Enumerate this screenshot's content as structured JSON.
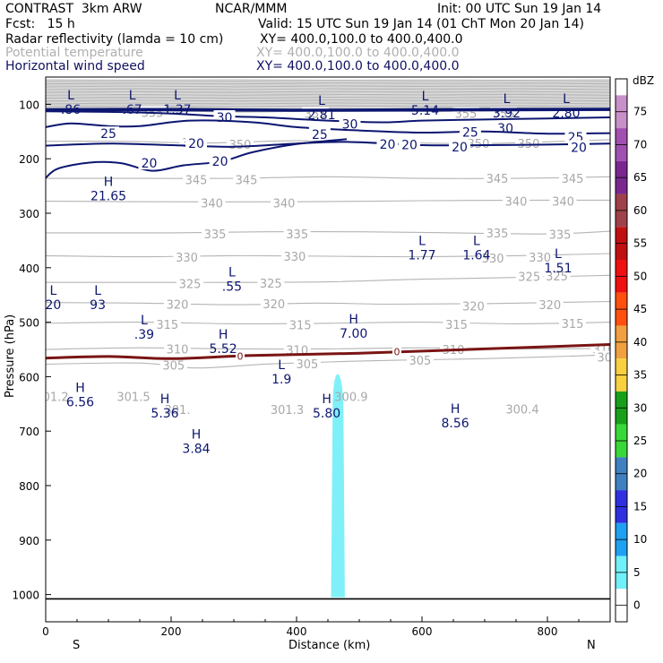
{
  "header": {
    "model": "CONTRAST  3km ARW",
    "org": "NCAR/MMM",
    "init": "Init: 00 UTC Sun 19 Jan 14",
    "fcst": "Fcst:   15 h",
    "valid": "Valid: 15 UTC Sun 19 Jan 14 (01 ChT Mon 20 Jan 14)",
    "field1_name": "Radar reflectivity (lamda = 10 cm)",
    "field1_xy": "XY= 400.0,100.0 to 400.0,400.0",
    "field2_name": "Potential temperature",
    "field2_xy": "XY= 400.0,100.0 to 400.0,400.0",
    "field3_name": "Horizontal wind speed",
    "field3_xy": "XY= 400.0,100.0 to 400.0,400.0"
  },
  "colors": {
    "theta": "#b4b4b4",
    "wind": "#0c1670",
    "freezing": "#7a1414",
    "refl_echo": "#80f0f8"
  },
  "chart_data": {
    "type": "cross-section",
    "title": "Radar reflectivity, potential temperature, horizontal wind speed",
    "xlabel": "Distance (km)",
    "ylabel": "Pressure (hPa)",
    "x_range": [
      0,
      900
    ],
    "p_range": [
      1050,
      50
    ],
    "x_ticks": [
      "0",
      "200",
      "400",
      "600",
      "800"
    ],
    "x_tick_values": [
      0,
      200,
      400,
      600,
      800
    ],
    "x_end_labels": {
      "left": "S",
      "right": "N"
    },
    "y_ticks": [
      "100",
      "200",
      "300",
      "400",
      "500",
      "600",
      "700",
      "800",
      "900",
      "1000"
    ],
    "y_tick_values": [
      100,
      200,
      300,
      400,
      500,
      600,
      700,
      800,
      900,
      1000
    ],
    "colorbar": {
      "unit": "dBZ",
      "levels": [
        "75",
        "70",
        "65",
        "60",
        "55",
        "50",
        "45",
        "40",
        "35",
        "30",
        "25",
        "20",
        "15",
        "10",
        "5",
        "0"
      ],
      "colors": [
        "#c890c8",
        "#a050b0",
        "#7a2890",
        "#a0404a",
        "#c01010",
        "#f01010",
        "#ff5010",
        "#f0a040",
        "#f8d040",
        "#18a018",
        "#38d838",
        "#4080c0",
        "#3030e0",
        "#20a0f0",
        "#70f0f8",
        "#ffffff"
      ]
    },
    "theta_isentropes": [
      {
        "value": "355",
        "points": [
          [
            0,
            112
          ],
          [
            100,
            110
          ],
          [
            200,
            112
          ],
          [
            300,
            114
          ],
          [
            400,
            113
          ],
          [
            500,
            111
          ],
          [
            600,
            113
          ],
          [
            700,
            112
          ],
          [
            900,
            110
          ]
        ],
        "labels": [
          [
            170,
            115
          ],
          [
            430,
            117
          ],
          [
            670,
            117
          ],
          [
            730,
            117
          ]
        ]
      },
      {
        "value": "350",
        "points": [
          [
            0,
            168
          ],
          [
            120,
            168
          ],
          [
            250,
            171
          ],
          [
            400,
            167
          ],
          [
            550,
            170
          ],
          [
            700,
            172
          ],
          [
            900,
            165
          ]
        ],
        "labels": [
          [
            235,
            170
          ],
          [
            310,
            173
          ],
          [
            690,
            172
          ],
          [
            770,
            172
          ]
        ]
      },
      {
        "value": "345",
        "points": [
          [
            0,
            236
          ],
          [
            150,
            236
          ],
          [
            300,
            236
          ],
          [
            450,
            233
          ],
          [
            600,
            236
          ],
          [
            750,
            236
          ],
          [
            900,
            233
          ]
        ],
        "labels": [
          [
            240,
            238
          ],
          [
            320,
            238
          ],
          [
            720,
            236
          ],
          [
            840,
            236
          ]
        ]
      },
      {
        "value": "340",
        "points": [
          [
            0,
            278
          ],
          [
            200,
            279
          ],
          [
            400,
            279
          ],
          [
            600,
            277
          ],
          [
            800,
            276
          ],
          [
            900,
            276
          ]
        ],
        "labels": [
          [
            265,
            281
          ],
          [
            380,
            281
          ],
          [
            750,
            278
          ],
          [
            825,
            278
          ]
        ]
      },
      {
        "value": "335",
        "points": [
          [
            0,
            336
          ],
          [
            200,
            336
          ],
          [
            350,
            334
          ],
          [
            500,
            334
          ],
          [
            650,
            336
          ],
          [
            800,
            338
          ],
          [
            900,
            333
          ]
        ],
        "labels": [
          [
            270,
            338
          ],
          [
            401,
            338
          ],
          [
            720,
            336
          ],
          [
            820,
            339
          ]
        ]
      },
      {
        "value": "330",
        "points": [
          [
            0,
            378
          ],
          [
            150,
            380
          ],
          [
            300,
            378
          ],
          [
            450,
            379
          ],
          [
            600,
            380
          ],
          [
            750,
            378
          ],
          [
            900,
            374
          ]
        ],
        "labels": [
          [
            225,
            381
          ],
          [
            397,
            379
          ],
          [
            713,
            382
          ],
          [
            788,
            381
          ]
        ]
      },
      {
        "value": "325",
        "points": [
          [
            0,
            427
          ],
          [
            150,
            427
          ],
          [
            300,
            427
          ],
          [
            450,
            426
          ],
          [
            600,
            421
          ],
          [
            750,
            418
          ],
          [
            900,
            414
          ]
        ],
        "labels": [
          [
            230,
            429
          ],
          [
            359,
            428
          ],
          [
            771,
            416
          ],
          [
            815,
            415
          ]
        ]
      },
      {
        "value": "320",
        "points": [
          [
            0,
            464
          ],
          [
            150,
            465
          ],
          [
            300,
            468
          ],
          [
            430,
            465
          ],
          [
            550,
            467
          ],
          [
            700,
            466
          ],
          [
            900,
            462
          ]
        ],
        "labels": [
          [
            210,
            467
          ],
          [
            364,
            466
          ],
          [
            682,
            470
          ],
          [
            804,
            468
          ]
        ]
      },
      {
        "value": "315",
        "points": [
          [
            0,
            502
          ],
          [
            150,
            500
          ],
          [
            300,
            503
          ],
          [
            450,
            502
          ],
          [
            600,
            500
          ],
          [
            750,
            503
          ],
          [
            900,
            500
          ]
        ],
        "labels": [
          [
            194,
            504
          ],
          [
            406,
            505
          ],
          [
            655,
            504
          ],
          [
            840,
            502
          ]
        ]
      },
      {
        "value": "310",
        "points": [
          [
            0,
            550
          ],
          [
            150,
            547
          ],
          [
            300,
            549
          ],
          [
            450,
            549
          ],
          [
            600,
            547
          ],
          [
            750,
            549
          ],
          [
            900,
            548
          ]
        ],
        "labels": [
          [
            210,
            549
          ],
          [
            401,
            551
          ],
          [
            650,
            550
          ],
          [
            890,
            549
          ]
        ]
      },
      {
        "value": "305",
        "points": [
          [
            0,
            577
          ],
          [
            150,
            575
          ],
          [
            240,
            584
          ],
          [
            350,
            577
          ],
          [
            450,
            573
          ],
          [
            550,
            570
          ],
          [
            700,
            567
          ],
          [
            900,
            560
          ]
        ],
        "labels": [
          [
            204,
            579
          ],
          [
            417,
            576
          ],
          [
            597,
            570
          ],
          [
            897,
            564
          ]
        ]
      }
    ],
    "theta_isolated_labels": [
      {
        "text": "301.2",
        "x": 10,
        "y": 636
      },
      {
        "text": "301.5",
        "x": 140,
        "y": 636
      },
      {
        "text": "301.",
        "x": 210,
        "y": 660
      },
      {
        "text": "301.3",
        "x": 385,
        "y": 660
      },
      {
        "text": "300.9",
        "x": 487,
        "y": 636
      },
      {
        "text": "300.4",
        "x": 760,
        "y": 659
      }
    ],
    "wind_contours": [
      {
        "value": "30",
        "points": [
          [
            0,
            113
          ],
          [
            100,
            114
          ],
          [
            200,
            117
          ],
          [
            280,
            122
          ],
          [
            350,
            124
          ],
          [
            450,
            130
          ],
          [
            540,
            133
          ],
          [
            600,
            130
          ],
          [
            700,
            128
          ],
          [
            800,
            126
          ],
          [
            900,
            124
          ]
        ],
        "labels": [
          [
            285,
            124
          ],
          [
            485,
            136
          ],
          [
            733,
            144
          ]
        ]
      },
      {
        "value": "25",
        "points": [
          [
            0,
            142
          ],
          [
            40,
            135
          ],
          [
            100,
            140
          ],
          [
            150,
            140
          ],
          [
            230,
            130
          ],
          [
            330,
            133
          ],
          [
            400,
            142
          ],
          [
            500,
            148
          ],
          [
            600,
            152
          ],
          [
            700,
            150
          ],
          [
            800,
            154
          ],
          [
            900,
            153
          ]
        ],
        "labels": [
          [
            100,
            154
          ],
          [
            437,
            155
          ],
          [
            677,
            151
          ],
          [
            845,
            160
          ]
        ]
      },
      {
        "value": "20",
        "points": [
          [
            0,
            176
          ],
          [
            100,
            172
          ],
          [
            200,
            175
          ],
          [
            300,
            178
          ],
          [
            400,
            172
          ],
          [
            480,
            169
          ],
          [
            600,
            175
          ],
          [
            700,
            175
          ],
          [
            800,
            174
          ],
          [
            900,
            172
          ]
        ],
        "labels": [
          [
            240,
            172
          ],
          [
            580,
            174
          ],
          [
            660,
            178
          ],
          [
            850,
            179
          ]
        ]
      },
      {
        "value": "20",
        "points": [
          [
            0,
            235
          ],
          [
            20,
            218
          ],
          [
            70,
            207
          ],
          [
            120,
            208
          ],
          [
            170,
            222
          ],
          [
            220,
            212
          ],
          [
            280,
            205
          ],
          [
            330,
            188
          ],
          [
            400,
            173
          ],
          [
            480,
            164
          ]
        ],
        "labels": [
          [
            165,
            208
          ],
          [
            278,
            205
          ],
          [
            545,
            173
          ]
        ]
      }
    ],
    "freezing_level": {
      "value": "0",
      "points": [
        [
          0,
          566
        ],
        [
          100,
          563
        ],
        [
          200,
          567
        ],
        [
          330,
          561
        ],
        [
          500,
          557
        ],
        [
          700,
          549
        ],
        [
          900,
          541
        ]
      ],
      "labels": [
        [
          310,
          562
        ],
        [
          560,
          554
        ]
      ]
    },
    "reflectivity_echoes": [
      {
        "dbz_range": "5-10",
        "bottom_hpa": 1005,
        "top_hpa": 595,
        "x_left": 455,
        "x_right": 477
      }
    ],
    "pressure_extrema": [
      {
        "type": "L",
        "value": ".86",
        "x": 40,
        "y": 91
      },
      {
        "type": "L",
        "value": ".67",
        "x": 138,
        "y": 91
      },
      {
        "type": "L",
        "value": "1.37",
        "x": 210,
        "y": 91
      },
      {
        "type": "L",
        "value": "2.81",
        "x": 440,
        "y": 101
      },
      {
        "type": "L",
        "value": "5.14",
        "x": 605,
        "y": 93
      },
      {
        "type": "L",
        "value": "3.92",
        "x": 735,
        "y": 98
      },
      {
        "type": "L",
        "value": "2.80",
        "x": 830,
        "y": 98
      },
      {
        "type": "H",
        "value": "21.65",
        "x": 100,
        "y": 250
      },
      {
        "type": "L",
        "value": "1.77",
        "x": 600,
        "y": 358
      },
      {
        "type": "L",
        "value": "1.64",
        "x": 687,
        "y": 358
      },
      {
        "type": "L",
        "value": "1.51",
        "x": 817,
        "y": 382
      },
      {
        "type": "L",
        "value": ".55",
        "x": 297,
        "y": 416
      },
      {
        "type": "L",
        "value": "20",
        "x": 12,
        "y": 450
      },
      {
        "type": "L",
        "value": "93",
        "x": 83,
        "y": 450
      },
      {
        "type": "L",
        "value": ".39",
        "x": 157,
        "y": 504
      },
      {
        "type": "H",
        "value": "5.52",
        "x": 283,
        "y": 530
      },
      {
        "type": "H",
        "value": "7.00",
        "x": 491,
        "y": 502
      },
      {
        "type": "L",
        "value": "1.9",
        "x": 376,
        "y": 586
      },
      {
        "type": "H",
        "value": "6.56",
        "x": 55,
        "y": 628
      },
      {
        "type": "H",
        "value": "5.36",
        "x": 190,
        "y": 649
      },
      {
        "type": "H",
        "value": "5.80",
        "x": 448,
        "y": 649
      },
      {
        "type": "H",
        "value": "8.56",
        "x": 653,
        "y": 667
      },
      {
        "type": "H",
        "value": "3.84",
        "x": 240,
        "y": 714
      }
    ]
  }
}
